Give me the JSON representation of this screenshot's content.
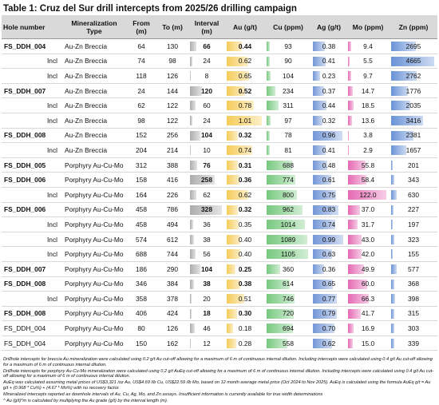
{
  "header": {
    "title": "Table 1: Cruz del Sur drill intercepts from 2025/26 drilling campaign"
  },
  "table": {
    "columns": [
      "Hole number",
      "Mineralization Type",
      "From (m)",
      "To (m)",
      "Interval (m)",
      "Au (g/t)",
      "Cu (ppm)",
      "Ag (g/t)",
      "Mo (ppm)",
      "Zn (ppm)"
    ],
    "bar_colors": [
      null,
      null,
      null,
      null,
      "#9e9e9e",
      "#f3c33c",
      "#5fbf68",
      "#5b84d0",
      "#e04fa6",
      "#4f7fd0"
    ],
    "rows": [
      [
        "FS_DDH_004",
        "Au-Zn Breccia",
        "64",
        "130",
        "66",
        "0.44",
        "93",
        "0.38",
        "9.4",
        "2695"
      ],
      [
        "Incl",
        "Au-Zn Breccia",
        "74",
        "98",
        "24",
        "0.62",
        "90",
        "0.41",
        "5.5",
        "4665"
      ],
      [
        "Incl",
        "Au-Zn Breccia",
        "118",
        "126",
        "8",
        "0.65",
        "104",
        "0.23",
        "9.7",
        "2762"
      ],
      [
        "FS_DDH_007",
        "Au-Zn Breccia",
        "24",
        "144",
        "120",
        "0.52",
        "234",
        "0.37",
        "14.7",
        "1776"
      ],
      [
        "Incl",
        "Au-Zn Breccia",
        "62",
        "122",
        "60",
        "0.78",
        "311",
        "0.44",
        "18.5",
        "2035"
      ],
      [
        "Incl",
        "Au-Zn Breccia",
        "98",
        "122",
        "24",
        "1.01",
        "97",
        "0.32",
        "13.6",
        "3416"
      ],
      [
        "FS_DDH_008",
        "Au-Zn Breccia",
        "152",
        "256",
        "104",
        "0.32",
        "78",
        "0.96",
        "3.8",
        "2381"
      ],
      [
        "Incl",
        "Au-Zn Breccia",
        "204",
        "214",
        "10",
        "0.74",
        "81",
        "0.41",
        "2.9",
        "1657"
      ],
      [
        "FS_DDH_005",
        "Porphyry Au-Cu-Mo",
        "312",
        "388",
        "76",
        "0.31",
        "688",
        "0.48",
        "55.8",
        "201"
      ],
      [
        "FS_DDH_006",
        "Porphyry Au-Cu-Mo",
        "158",
        "416",
        "258",
        "0.36",
        "774",
        "0.61",
        "58.4",
        "343"
      ],
      [
        "Incl",
        "Porphyry Au-Cu-Mo",
        "164",
        "226",
        "62",
        "0.62",
        "800",
        "0.75",
        "122.0",
        "630"
      ],
      [
        "FS_DDH_006",
        "Porphyry Au-Cu-Mo",
        "458",
        "786",
        "328",
        "0.32",
        "962",
        "0.83",
        "37.0",
        "227"
      ],
      [
        "Incl",
        "Porphyry Au-Cu-Mo",
        "458",
        "494",
        "36",
        "0.35",
        "1014",
        "0.74",
        "31.7",
        "197"
      ],
      [
        "Incl",
        "Porphyry Au-Cu-Mo",
        "574",
        "612",
        "38",
        "0.40",
        "1089",
        "0.99",
        "43.0",
        "323"
      ],
      [
        "Incl",
        "Porphyry Au-Cu-Mo",
        "688",
        "744",
        "56",
        "0.40",
        "1105",
        "0.63",
        "42.0",
        "155"
      ],
      [
        "FS_DDH_007",
        "Porphyry Au-Cu-Mo",
        "186",
        "290",
        "104",
        "0.25",
        "360",
        "0.36",
        "49.9",
        "577"
      ],
      [
        "FS_DDH_008",
        "Porphyry Au-Cu-Mo",
        "346",
        "384",
        "38",
        "0.38",
        "614",
        "0.65",
        "60.0",
        "368"
      ],
      [
        "Incl",
        "Porphyry Au-Cu-Mo",
        "358",
        "378",
        "20",
        "0.51",
        "746",
        "0.77",
        "66.3",
        "398"
      ],
      [
        "FS_DDH_008",
        "Porphyry Au-Cu-Mo",
        "406",
        "424",
        "18",
        "0.30",
        "720",
        "0.79",
        "41.7",
        "315"
      ],
      [
        "FS_DDH_004",
        "Porphyry Au-Cu-Mo",
        "80",
        "126",
        "46",
        "0.18",
        "694",
        "0.70",
        "16.9",
        "303"
      ],
      [
        "FS_DDH_004",
        "Porphyry Au-Cu-Mo",
        "150",
        "162",
        "12",
        "0.28",
        "558",
        "0.62",
        "15.0",
        "339"
      ]
    ],
    "bold_rows": [
      true,
      false,
      false,
      true,
      false,
      false,
      true,
      false,
      true,
      true,
      false,
      true,
      false,
      false,
      false,
      true,
      true,
      false,
      true,
      false,
      false
    ]
  },
  "notes": [
    "Drillhole intercepts for breccia Au mineralization were calculated using 0.2 g/t Au cut-off allowing for a maximum of 6 m of continuous internal dilution. Including intercepts were calculated using 0.4 g/t Au cut-off allowing for a maximum of 6 m of continuous internal dilution.",
    "Drillhole intercepts for porphyry Au-Cu-Mo mineralization were calculated using 0.2 g/t AuEq cut-off allowing for a maximum of 6 m of continuous internal dilution. Including intercepts were calculated using 0.4 g/t Au cut-off allowing for a maximum of 6 m of continuous internal dilution.",
    "AuEq was calculated assuming metal prices of US$3,321 /oz Au, US$4.69 /lb Cu, US$22.59 /lb Mo, based on 12 month average metal price (Oct 2024 to Nov 2025). AuEq is calculated using the formula AuEq g/t = Au g/t + (0.968 * Cu%) + (4.67 * Mo%) with no recovery factor.",
    "Mineralized intercepts reported as downhole intervals of Au, Cu, Ag, Mo, and Zn assays. Insufficient information is currently available for true width determinations",
    "^ Au (g/t)*m is calculated by multiplying the Au grade (g/t) by the interval length (m)."
  ]
}
